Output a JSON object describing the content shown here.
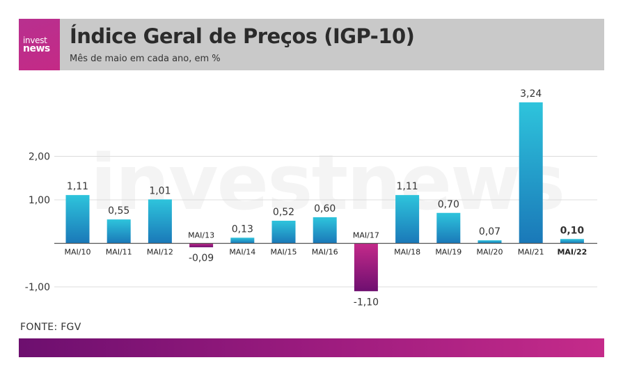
{
  "header": {
    "logo_top": "invest",
    "logo_bottom": "news",
    "title": "Índice Geral de Preços (IGP-10)",
    "subtitle": "Mês de maio em cada ano, em %"
  },
  "watermark": "investnews",
  "source": "FONTE: FGV",
  "colors": {
    "header_bg": "#c9c9c9",
    "positive_top": "#2ec4dc",
    "positive_bottom": "#1a78b8",
    "negative_top": "#c42a8a",
    "negative_bottom": "#6e0f70",
    "footer_start": "#6d0f6f",
    "footer_end": "#c52b8a"
  },
  "chart_data": {
    "type": "bar",
    "categories": [
      "MAI/10",
      "MAI/11",
      "MAI/12",
      "MAI/13",
      "MAI/14",
      "MAI/15",
      "MAI/16",
      "MAI/17",
      "MAI/18",
      "MAI/19",
      "MAI/20",
      "MAI/21",
      "MAI/22"
    ],
    "values": [
      1.11,
      0.55,
      1.01,
      -0.09,
      0.13,
      0.52,
      0.6,
      -1.1,
      1.11,
      0.7,
      0.07,
      3.24,
      0.1
    ],
    "value_labels": [
      "1,11",
      "0,55",
      "1,01",
      "-0,09",
      "0,13",
      "0,52",
      "0,60",
      "-1,10",
      "1,11",
      "0,70",
      "0,07",
      "3,24",
      "0,10"
    ],
    "highlight_index": 12,
    "y_ticks": [
      -1,
      1,
      2
    ],
    "y_tick_labels": [
      "-1,00",
      "1,00",
      "2,00"
    ],
    "ylim": [
      -1.5,
      3.4
    ],
    "grid": true,
    "legend": "none"
  }
}
